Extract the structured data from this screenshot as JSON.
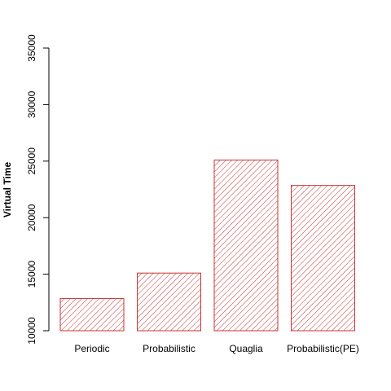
{
  "chart_data": {
    "type": "bar",
    "title": "",
    "xlabel": "",
    "ylabel": "Virtual Time",
    "categories": [
      "Periodic",
      "Probabilistic",
      "Quaglia",
      "Probabilistic(PE)"
    ],
    "values": [
      12850,
      15100,
      25100,
      22850
    ],
    "ylim": [
      10000,
      35000
    ],
    "yticks": [
      "10000",
      "15000",
      "20000",
      "25000",
      "30000",
      "35000"
    ],
    "grid": false,
    "legend": "none",
    "bar_fill": "diagonal-hatch",
    "bar_color": "#cc3333"
  }
}
